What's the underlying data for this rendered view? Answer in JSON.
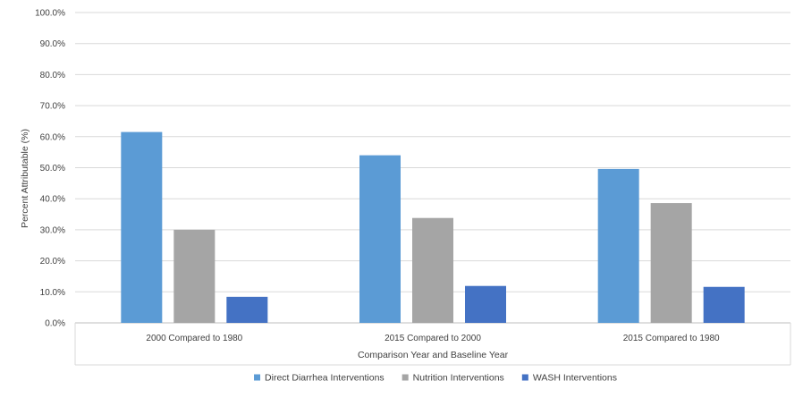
{
  "chart_data": {
    "type": "bar",
    "title": "",
    "xlabel": "Comparison Year and Baseline Year",
    "ylabel": "Percent Attributable (%)",
    "ylim": [
      0,
      100
    ],
    "yticks": [
      "0.0%",
      "10.0%",
      "20.0%",
      "30.0%",
      "40.0%",
      "50.0%",
      "60.0%",
      "70.0%",
      "80.0%",
      "90.0%",
      "100.0%"
    ],
    "categories": [
      "2000 Compared to 1980",
      "2015 Compared to 2000",
      "2015 Compared to 1980"
    ],
    "series": [
      {
        "name": "Direct Diarrhea Interventions",
        "values": [
          61.5,
          54.0,
          49.6
        ],
        "color": "#5B9BD5"
      },
      {
        "name": "Nutrition Interventions",
        "values": [
          30.0,
          33.8,
          38.6
        ],
        "color": "#A5A5A5"
      },
      {
        "name": "WASH Interventions",
        "values": [
          8.4,
          11.9,
          11.6
        ],
        "color": "#4472C4"
      }
    ],
    "grid": true,
    "legend_position": "bottom"
  }
}
